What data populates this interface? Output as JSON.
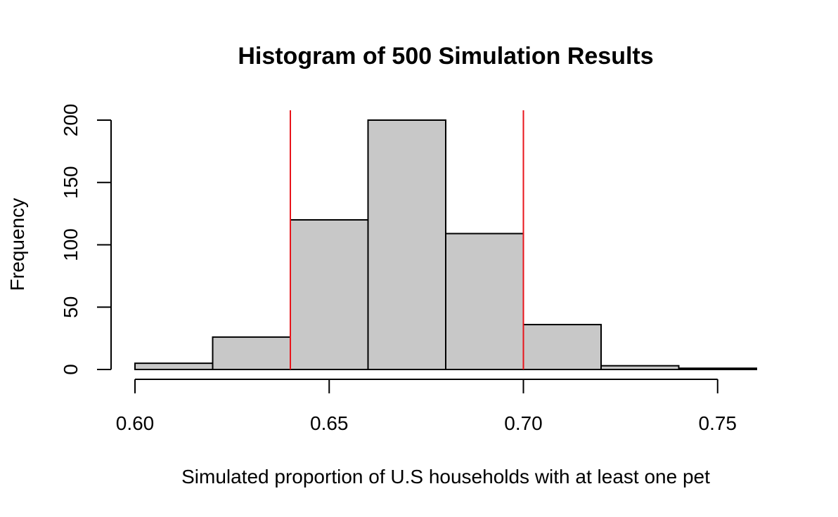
{
  "chart_data": {
    "type": "bar",
    "title": "Histogram of 500 Simulation Results",
    "xlabel": "Simulated proportion of U.S households with at least one pet",
    "ylabel": "Frequency",
    "bins": [
      {
        "x0": 0.6,
        "x1": 0.62,
        "value": 5
      },
      {
        "x0": 0.62,
        "x1": 0.64,
        "value": 26
      },
      {
        "x0": 0.64,
        "x1": 0.66,
        "value": 120
      },
      {
        "x0": 0.66,
        "x1": 0.68,
        "value": 200
      },
      {
        "x0": 0.68,
        "x1": 0.7,
        "value": 109
      },
      {
        "x0": 0.7,
        "x1": 0.72,
        "value": 36
      },
      {
        "x0": 0.72,
        "x1": 0.74,
        "value": 3
      },
      {
        "x0": 0.74,
        "x1": 0.76,
        "value": 1
      }
    ],
    "xlim": [
      0.6,
      0.76
    ],
    "ylim": [
      0,
      200
    ],
    "x_ticks": [
      0.6,
      0.65,
      0.7,
      0.75
    ],
    "x_tick_labels": [
      "0.60",
      "0.65",
      "0.70",
      "0.75"
    ],
    "y_ticks": [
      0,
      50,
      100,
      150,
      200
    ],
    "y_tick_labels": [
      "0",
      "50",
      "100",
      "150",
      "200"
    ],
    "reference_lines": [
      0.64,
      0.7
    ],
    "colors": {
      "bar_fill": "#c8c8c8",
      "bar_stroke": "#000000",
      "reference_line": "#e8141b"
    },
    "grid": false,
    "legend": "none"
  }
}
